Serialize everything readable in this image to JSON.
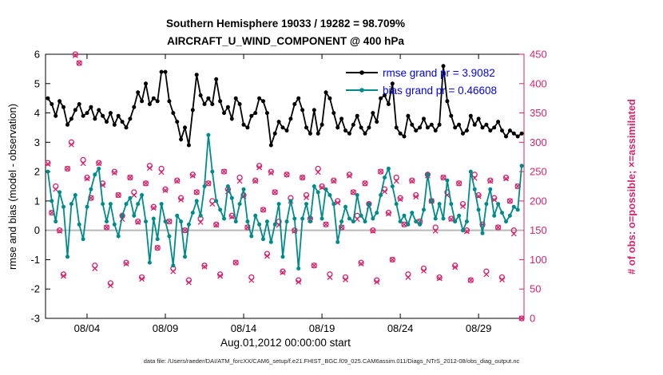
{
  "footer": {
    "datafile": "data file: /Users/raeder/DAI/ATM_forcXX/CAM6_setup/f.e21.FHIST_BGC.f09_025.CAM6assim.011/Diags_NTrS_2012-08/obs_diag_output.nc"
  },
  "chart_data": {
    "type": "line",
    "title_line1": "Southern Hemisphere 19033 / 19282 = 98.709%",
    "title_line2": "AIRCRAFT_U_WIND_COMPONENT @ 400 hPa",
    "xlabel": "Aug.01,2012 00:00:00 start",
    "ylabel_left": "rmse and bias (model - observation)",
    "ylabel_right": "# of obs: o=possible; ×=assimilated",
    "x_range": [
      1.35,
      31.9
    ],
    "ylim_left": [
      -3,
      6
    ],
    "ylim_right": [
      0,
      450
    ],
    "y_ticks_left": [
      -3,
      -2,
      -1,
      0,
      1,
      2,
      3,
      4,
      5,
      6
    ],
    "y_ticks_right": [
      0,
      50,
      100,
      150,
      200,
      250,
      300,
      350,
      400,
      450
    ],
    "x_ticks": [
      {
        "t": 4,
        "label": "08/04"
      },
      {
        "t": 9,
        "label": "08/09"
      },
      {
        "t": 14,
        "label": "08/14"
      },
      {
        "t": 19,
        "label": "08/19"
      },
      {
        "t": 24,
        "label": "08/24"
      },
      {
        "t": 29,
        "label": "08/29"
      }
    ],
    "legend": [
      {
        "label": "rmse grand pr = 3.9082",
        "series": "rmse"
      },
      {
        "label": "bias grand pr = 0.46608",
        "series": "bias"
      }
    ],
    "colors": {
      "rmse": "#000000",
      "bias": "#008b8b",
      "obs": "#d6246c",
      "legend_text": "#0000ee",
      "zero_line": "#b8b8b8",
      "axis": "#000000"
    },
    "x": [
      1.5,
      1.75,
      2,
      2.25,
      2.5,
      2.75,
      3,
      3.25,
      3.5,
      3.75,
      4,
      4.25,
      4.5,
      4.75,
      5,
      5.25,
      5.5,
      5.75,
      6,
      6.25,
      6.5,
      6.75,
      7,
      7.25,
      7.5,
      7.75,
      8,
      8.25,
      8.5,
      8.75,
      9,
      9.25,
      9.5,
      9.75,
      10,
      10.25,
      10.5,
      10.75,
      11,
      11.25,
      11.5,
      11.75,
      12,
      12.25,
      12.5,
      12.75,
      13,
      13.25,
      13.5,
      13.75,
      14,
      14.25,
      14.5,
      14.75,
      15,
      15.25,
      15.5,
      15.75,
      16,
      16.25,
      16.5,
      16.75,
      17,
      17.25,
      17.5,
      17.75,
      18,
      18.25,
      18.5,
      18.75,
      19,
      19.25,
      19.5,
      19.75,
      20,
      20.25,
      20.5,
      20.75,
      21,
      21.25,
      21.5,
      21.75,
      22,
      22.25,
      22.5,
      22.75,
      23,
      23.25,
      23.5,
      23.75,
      24,
      24.25,
      24.5,
      24.75,
      25,
      25.25,
      25.5,
      25.75,
      26,
      26.25,
      26.5,
      26.75,
      27,
      27.25,
      27.5,
      27.75,
      28,
      28.25,
      28.5,
      28.75,
      29,
      29.25,
      29.5,
      29.75,
      30,
      30.25,
      30.5,
      30.75,
      31,
      31.25,
      31.5,
      31.75
    ],
    "series": [
      {
        "name": "rmse",
        "axis": "left",
        "marker": "dot",
        "values": [
          4.5,
          4.3,
          3.9,
          4.4,
          4.2,
          3.6,
          3.8,
          4.1,
          4.3,
          3.9,
          4.0,
          4.2,
          3.8,
          4.1,
          3.9,
          3.7,
          4.0,
          3.6,
          3.9,
          3.7,
          3.5,
          3.8,
          4.2,
          4.7,
          4.4,
          5.0,
          4.3,
          4.5,
          4.4,
          5.4,
          5.4,
          4.4,
          4.0,
          3.7,
          3.1,
          3.5,
          2.9,
          4.1,
          5.3,
          4.6,
          4.3,
          4.5,
          4.3,
          5.15,
          4.4,
          4.0,
          4.2,
          3.8,
          4.5,
          4.3,
          3.6,
          3.5,
          3.9,
          4.0,
          4.5,
          4.4,
          4.0,
          2.9,
          3.3,
          3.7,
          3.5,
          3.4,
          3.8,
          4.3,
          4.5,
          4.1,
          3.5,
          3.3,
          4.1,
          3.3,
          3.6,
          4.7,
          4.5,
          4.0,
          3.5,
          3.8,
          3.4,
          3.3,
          3.6,
          3.9,
          3.5,
          3.3,
          3.5,
          4.0,
          3.7,
          4.5,
          4.6,
          4.3,
          5.0,
          3.5,
          3.3,
          3.2,
          3.9,
          3.6,
          3.4,
          3.5,
          3.8,
          3.5,
          3.6,
          3.4,
          3.6,
          5.6,
          4.4,
          3.9,
          3.5,
          3.6,
          3.3,
          3.4,
          3.9,
          3.6,
          3.8,
          3.5,
          3.6,
          3.4,
          3.5,
          3.7,
          3.4,
          3.2,
          3.4,
          3.3,
          3.2,
          3.3
        ]
      },
      {
        "name": "bias",
        "axis": "left",
        "marker": "dot",
        "values": [
          2.0,
          1.0,
          0.3,
          1.3,
          0.8,
          -0.9,
          0.9,
          1.2,
          0.2,
          -0.3,
          0.8,
          1.4,
          1.9,
          2.1,
          0.9,
          0.3,
          0.9,
          0.2,
          -0.2,
          0.5,
          0.9,
          1.1,
          0.5,
          0.9,
          1.2,
          0.3,
          -1.1,
          0.4,
          -0.3,
          0.9,
          0.3,
          -0.2,
          -1.2,
          0.5,
          0.3,
          -0.9,
          0.2,
          0.6,
          1.0,
          0.5,
          1.5,
          3.25,
          2.0,
          1.0,
          0.7,
          0.4,
          1.5,
          1.1,
          0.3,
          0.9,
          1.4,
          0.3,
          -0.2,
          0.5,
          0.2,
          -0.3,
          0.3,
          -0.4,
          0.2,
          0.9,
          -0.9,
          0.3,
          1.0,
          0.4,
          -1.3,
          0.4,
          0.9,
          0.3,
          1.5,
          1.3,
          0.4,
          1.4,
          1.2,
          0.9,
          -0.4,
          0.3,
          0.8,
          0.4,
          0.3,
          1.2,
          0.5,
          0.3,
          0.9,
          0.4,
          0.6,
          1.2,
          1.8,
          2.1,
          1.5,
          0.9,
          0.3,
          0.5,
          0.2,
          0.6,
          0.3,
          0.2,
          0.7,
          1.9,
          1.0,
          0.4,
          0.9,
          0.4,
          1.7,
          0.9,
          0.3,
          0.5,
          0.0,
          0.3,
          2.0,
          1.4,
          0.7,
          -0.1,
          0.9,
          1.4,
          0.5,
          0.9,
          0.6,
          0.3,
          0.5,
          0.8,
          0.7,
          2.2
        ]
      },
      {
        "name": "possible",
        "axis": "right",
        "marker": "circle",
        "values": [
          265,
          180,
          225,
          150,
          75,
          255,
          300,
          450,
          435,
          270,
          240,
          205,
          90,
          265,
          230,
          155,
          60,
          250,
          210,
          175,
          95,
          240,
          215,
          165,
          70,
          230,
          260,
          190,
          120,
          255,
          220,
          165,
          85,
          235,
          205,
          150,
          65,
          245,
          215,
          170,
          90,
          230,
          200,
          160,
          75,
          250,
          220,
          175,
          95,
          240,
          210,
          155,
          70,
          235,
          260,
          185,
          110,
          250,
          215,
          165,
          80,
          245,
          205,
          150,
          65,
          240,
          210,
          170,
          90,
          255,
          225,
          160,
          75,
          235,
          200,
          155,
          70,
          245,
          215,
          175,
          95,
          230,
          195,
          150,
          65,
          250,
          220,
          180,
          100,
          240,
          205,
          160,
          75,
          235,
          210,
          165,
          85,
          245,
          200,
          155,
          70,
          240,
          215,
          170,
          90,
          230,
          195,
          150,
          65,
          245,
          210,
          160,
          80,
          235,
          205,
          155,
          70,
          240,
          200,
          150,
          225,
          0
        ]
      },
      {
        "name": "assimilated",
        "axis": "right",
        "marker": "x",
        "values": [
          263,
          180,
          220,
          149,
          72,
          255,
          296,
          448,
          435,
          264,
          238,
          205,
          85,
          264,
          227,
          155,
          56,
          248,
          210,
          169,
          93,
          240,
          210,
          164,
          67,
          230,
          256,
          188,
          120,
          249,
          218,
          165,
          80,
          234,
          202,
          150,
          61,
          243,
          215,
          164,
          88,
          230,
          195,
          159,
          72,
          250,
          216,
          173,
          95,
          234,
          208,
          155,
          65,
          234,
          257,
          185,
          106,
          248,
          215,
          159,
          78,
          245,
          200,
          149,
          62,
          240,
          206,
          168,
          90,
          249,
          223,
          160,
          70,
          234,
          197,
          155,
          66,
          243,
          215,
          169,
          93,
          230,
          190,
          149,
          62,
          250,
          216,
          178,
          100,
          234,
          203,
          160,
          70,
          234,
          207,
          165,
          81,
          243,
          200,
          149,
          68,
          240,
          210,
          169,
          87,
          230,
          191,
          148,
          65,
          239,
          208,
          160,
          75,
          234,
          202,
          155,
          66,
          238,
          200,
          144,
          225,
          0
        ]
      }
    ]
  }
}
